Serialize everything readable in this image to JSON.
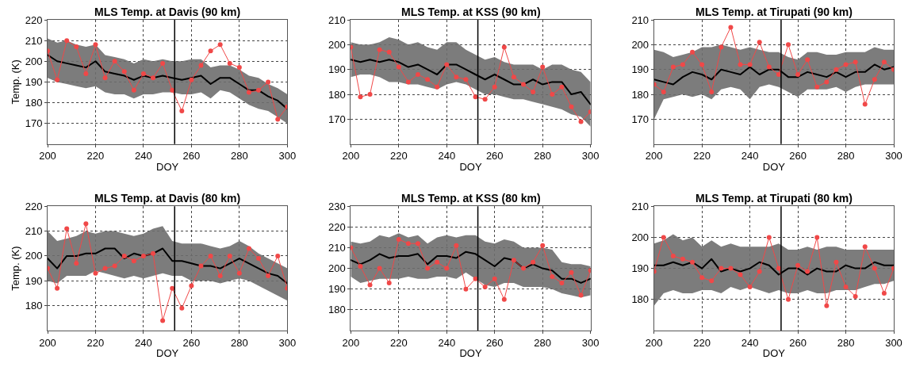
{
  "chart_data": [
    {
      "type": "line",
      "title": "MLS Temp. at Davis (90 km)",
      "xlabel": "DOY",
      "ylabel": "Temp. (K)",
      "x": [
        200,
        204,
        208,
        212,
        216,
        220,
        224,
        228,
        232,
        236,
        240,
        244,
        248,
        252,
        256,
        260,
        264,
        268,
        272,
        276,
        280,
        284,
        288,
        292,
        296,
        300
      ],
      "xlim": [
        200,
        300
      ],
      "xticks": [
        200,
        220,
        240,
        260,
        280,
        300
      ],
      "ylim": [
        160,
        220
      ],
      "yticks": [
        170,
        180,
        190,
        200,
        210,
        220
      ],
      "grid": true,
      "ref_lines": [
        {
          "axis": "x",
          "value": 253,
          "color": "#000000"
        }
      ],
      "series": [
        {
          "color": "#000000",
          "marker": "none",
          "values": [
            203,
            200,
            199,
            198,
            197,
            200,
            195,
            194,
            193,
            191,
            193,
            192,
            193,
            192,
            191,
            192,
            193,
            189,
            192,
            192,
            189,
            186,
            186,
            183,
            181,
            177
          ],
          "lower": [
            192,
            190,
            189,
            188,
            187,
            188,
            185,
            184,
            184,
            182,
            184,
            184,
            185,
            185,
            184,
            184,
            185,
            182,
            186,
            185,
            182,
            179,
            177,
            176,
            173,
            170
          ],
          "upper": [
            211,
            209,
            210,
            208,
            207,
            208,
            203,
            202,
            201,
            199,
            201,
            200,
            201,
            200,
            200,
            201,
            201,
            197,
            198,
            198,
            196,
            193,
            192,
            189,
            187,
            184
          ]
        },
        {
          "color": "#f04848",
          "marker": "circle",
          "values": [
            205,
            191,
            210,
            207,
            194,
            208,
            192,
            200,
            195,
            186,
            194,
            192,
            199,
            186,
            176,
            191,
            198,
            205,
            208,
            199,
            197,
            185,
            186,
            190,
            172,
            178
          ]
        }
      ]
    },
    {
      "type": "line",
      "title": "MLS Temp. at KSS (90 km)",
      "xlabel": "DOY",
      "x": [
        200,
        204,
        208,
        212,
        216,
        220,
        224,
        228,
        232,
        236,
        240,
        244,
        248,
        252,
        256,
        260,
        264,
        268,
        272,
        276,
        280,
        284,
        288,
        292,
        296,
        300
      ],
      "xlim": [
        200,
        300
      ],
      "xticks": [
        200,
        220,
        240,
        260,
        280,
        300
      ],
      "ylim": [
        160,
        210
      ],
      "yticks": [
        170,
        180,
        190,
        200,
        210
      ],
      "grid": true,
      "ref_lines": [
        {
          "axis": "x",
          "value": 253,
          "color": "#000000"
        }
      ],
      "series": [
        {
          "color": "#000000",
          "marker": "none",
          "values": [
            194,
            193,
            194,
            193,
            194,
            193,
            191,
            192,
            190,
            188,
            192,
            192,
            190,
            188,
            186,
            188,
            186,
            184,
            184,
            186,
            184,
            185,
            185,
            180,
            181,
            176
          ],
          "lower": [
            187,
            188,
            188,
            187,
            185,
            185,
            184,
            184,
            183,
            182,
            184,
            185,
            184,
            182,
            180,
            180,
            179,
            178,
            178,
            177,
            176,
            175,
            174,
            172,
            171,
            167
          ],
          "upper": [
            201,
            200,
            200,
            201,
            203,
            202,
            200,
            201,
            199,
            198,
            201,
            201,
            198,
            196,
            194,
            195,
            193,
            192,
            192,
            192,
            190,
            192,
            192,
            190,
            189,
            185
          ]
        },
        {
          "color": "#f04848",
          "marker": "circle",
          "values": [
            199,
            179,
            180,
            198,
            197,
            191,
            185,
            188,
            186,
            183,
            192,
            187,
            186,
            179,
            178,
            183,
            199,
            187,
            184,
            181,
            191,
            180,
            183,
            175,
            169,
            173
          ]
        }
      ]
    },
    {
      "type": "line",
      "title": "MLS Temp. at Tirupati (90 km)",
      "xlabel": "DOY",
      "x": [
        200,
        204,
        208,
        212,
        216,
        220,
        224,
        228,
        232,
        236,
        240,
        244,
        248,
        252,
        256,
        260,
        264,
        268,
        272,
        276,
        280,
        284,
        288,
        292,
        296,
        300
      ],
      "xlim": [
        200,
        300
      ],
      "xticks": [
        200,
        220,
        240,
        260,
        280,
        300
      ],
      "ylim": [
        160,
        210
      ],
      "yticks": [
        170,
        180,
        190,
        200,
        210
      ],
      "grid": true,
      "ref_lines": [
        {
          "axis": "x",
          "value": 253,
          "color": "#000000"
        }
      ],
      "series": [
        {
          "color": "#000000",
          "marker": "none",
          "values": [
            186,
            185,
            184,
            187,
            189,
            188,
            186,
            190,
            189,
            188,
            191,
            188,
            190,
            190,
            187,
            187,
            189,
            188,
            187,
            189,
            187,
            189,
            189,
            192,
            190,
            191
          ],
          "lower": [
            170,
            178,
            179,
            180,
            179,
            180,
            178,
            182,
            183,
            182,
            178,
            183,
            184,
            183,
            181,
            179,
            182,
            182,
            182,
            183,
            181,
            183,
            184,
            184,
            184,
            184
          ],
          "upper": [
            198,
            197,
            195,
            196,
            197,
            199,
            199,
            200,
            199,
            198,
            199,
            198,
            197,
            197,
            195,
            194,
            197,
            197,
            196,
            196,
            197,
            197,
            197,
            199,
            198,
            198
          ]
        },
        {
          "color": "#f04848",
          "marker": "circle",
          "values": [
            184,
            181,
            191,
            192,
            197,
            192,
            181,
            199,
            207,
            192,
            192,
            201,
            191,
            188,
            200,
            188,
            194,
            183,
            185,
            190,
            192,
            193,
            176,
            186,
            193,
            190
          ]
        }
      ]
    },
    {
      "type": "line",
      "title": "MLS Temp. at Davis (80 km)",
      "xlabel": "DOY",
      "ylabel": "Temp. (K)",
      "x": [
        200,
        204,
        208,
        212,
        216,
        220,
        224,
        228,
        232,
        236,
        240,
        244,
        248,
        252,
        256,
        260,
        264,
        268,
        272,
        276,
        280,
        284,
        288,
        292,
        296,
        300
      ],
      "xlim": [
        200,
        300
      ],
      "xticks": [
        200,
        220,
        240,
        260,
        280,
        300
      ],
      "ylim": [
        170,
        220
      ],
      "yticks": [
        180,
        190,
        200,
        210,
        220
      ],
      "grid": true,
      "ref_lines": [
        {
          "axis": "x",
          "value": 253,
          "color": "#000000"
        }
      ],
      "series": [
        {
          "color": "#000000",
          "marker": "none",
          "values": [
            199,
            195,
            200,
            200,
            201,
            201,
            203,
            203,
            199,
            201,
            200,
            201,
            203,
            198,
            198,
            197,
            196,
            196,
            195,
            197,
            199,
            197,
            195,
            193,
            192,
            189
          ],
          "lower": [
            190,
            189,
            192,
            192,
            192,
            194,
            193,
            192,
            191,
            192,
            191,
            192,
            193,
            192,
            192,
            190,
            190,
            190,
            189,
            190,
            191,
            190,
            188,
            186,
            184,
            182
          ],
          "upper": [
            210,
            206,
            207,
            208,
            210,
            209,
            210,
            210,
            209,
            208,
            209,
            211,
            212,
            206,
            205,
            205,
            205,
            204,
            203,
            204,
            206,
            204,
            201,
            199,
            197,
            195
          ]
        },
        {
          "color": "#f04848",
          "marker": "circle",
          "values": [
            195,
            187,
            211,
            197,
            213,
            193,
            195,
            196,
            200,
            198,
            200,
            201,
            174,
            187,
            179,
            188,
            196,
            200,
            192,
            200,
            193,
            203,
            199,
            192,
            200,
            187
          ]
        }
      ]
    },
    {
      "type": "line",
      "title": "MLS Temp. at KSS (80 km)",
      "xlabel": "DOY",
      "x": [
        200,
        204,
        208,
        212,
        216,
        220,
        224,
        228,
        232,
        236,
        240,
        244,
        248,
        252,
        256,
        260,
        264,
        268,
        272,
        276,
        280,
        284,
        288,
        292,
        296,
        300
      ],
      "xlim": [
        200,
        300
      ],
      "xticks": [
        200,
        220,
        240,
        260,
        280,
        300
      ],
      "ylim": [
        170,
        230
      ],
      "yticks": [
        180,
        190,
        200,
        210,
        220,
        230
      ],
      "grid": true,
      "ref_lines": [
        {
          "axis": "x",
          "value": 253,
          "color": "#000000"
        }
      ],
      "series": [
        {
          "color": "#000000",
          "marker": "none",
          "values": [
            204,
            202,
            204,
            207,
            205,
            206,
            206,
            207,
            202,
            206,
            206,
            205,
            208,
            207,
            204,
            201,
            205,
            204,
            200,
            202,
            200,
            199,
            195,
            195,
            193,
            195
          ],
          "lower": [
            196,
            193,
            194,
            195,
            195,
            195,
            196,
            195,
            195,
            196,
            196,
            195,
            198,
            195,
            192,
            191,
            193,
            193,
            191,
            191,
            191,
            190,
            188,
            187,
            186,
            187
          ],
          "upper": [
            213,
            212,
            213,
            216,
            215,
            217,
            215,
            216,
            212,
            215,
            216,
            215,
            216,
            216,
            213,
            212,
            214,
            213,
            210,
            210,
            210,
            209,
            203,
            202,
            202,
            201
          ]
        },
        {
          "color": "#f04848",
          "marker": "circle",
          "values": [
            210,
            201,
            192,
            200,
            193,
            214,
            212,
            212,
            200,
            203,
            200,
            211,
            190,
            195,
            191,
            195,
            185,
            204,
            200,
            203,
            211,
            196,
            193,
            198,
            187,
            199
          ]
        }
      ]
    },
    {
      "type": "line",
      "title": "MLS Temp. at Tirupati (80 km)",
      "xlabel": "DOY",
      "x": [
        200,
        204,
        208,
        212,
        216,
        220,
        224,
        228,
        232,
        236,
        240,
        244,
        248,
        252,
        256,
        260,
        264,
        268,
        272,
        276,
        280,
        284,
        288,
        292,
        296,
        300
      ],
      "xlim": [
        200,
        300
      ],
      "xticks": [
        200,
        220,
        240,
        260,
        280,
        300
      ],
      "ylim": [
        170,
        210
      ],
      "yticks": [
        180,
        190,
        200,
        210
      ],
      "grid": true,
      "ref_lines": [
        {
          "axis": "x",
          "value": 253,
          "color": "#000000"
        }
      ],
      "series": [
        {
          "color": "#000000",
          "marker": "none",
          "values": [
            191,
            191,
            192,
            191,
            192,
            190,
            193,
            189,
            190,
            189,
            190,
            192,
            191,
            188,
            190,
            190,
            188,
            190,
            189,
            189,
            191,
            190,
            190,
            192,
            191,
            191
          ],
          "lower": [
            178,
            182,
            183,
            182,
            182,
            183,
            183,
            182,
            184,
            183,
            184,
            183,
            182,
            183,
            182,
            182,
            183,
            182,
            182,
            183,
            183,
            183,
            184,
            185,
            185,
            186
          ],
          "upper": [
            198,
            199,
            201,
            199,
            200,
            197,
            199,
            197,
            198,
            197,
            197,
            197,
            197,
            198,
            196,
            196,
            197,
            196,
            197,
            197,
            196,
            196,
            196,
            196,
            196,
            196
          ]
        },
        {
          "color": "#f04848",
          "marker": "circle",
          "values": [
            189,
            200,
            194,
            193,
            192,
            187,
            186,
            190,
            190,
            188,
            184,
            189,
            200,
            190,
            180,
            191,
            189,
            200,
            178,
            192,
            184,
            181,
            197,
            190,
            182,
            190
          ]
        }
      ]
    }
  ]
}
